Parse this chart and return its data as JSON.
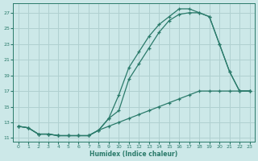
{
  "xlabel": "Humidex (Indice chaleur)",
  "bg_color": "#cce8e8",
  "grid_color": "#b0d0d0",
  "line_color": "#2a7a6a",
  "xlim": [
    -0.5,
    23.5
  ],
  "ylim": [
    10.5,
    28.2
  ],
  "xticks": [
    0,
    1,
    2,
    3,
    4,
    5,
    6,
    7,
    8,
    9,
    10,
    11,
    12,
    13,
    14,
    15,
    16,
    17,
    18,
    19,
    20,
    21,
    22,
    23
  ],
  "yticks": [
    11,
    13,
    15,
    17,
    19,
    21,
    23,
    25,
    27
  ],
  "series1_x": [
    0,
    1,
    2,
    3,
    4,
    5,
    6,
    7,
    8,
    9,
    10,
    11,
    12,
    13,
    14,
    15,
    16,
    17,
    18,
    19,
    20,
    21,
    22,
    23
  ],
  "series1_y": [
    12.5,
    12.3,
    11.5,
    11.5,
    11.3,
    11.3,
    11.3,
    11.3,
    12.0,
    13.5,
    14.5,
    18.5,
    20.5,
    22.5,
    24.5,
    26.0,
    26.8,
    27.0,
    27.0,
    26.5,
    23.0,
    19.5,
    17.0,
    17.0
  ],
  "series2_x": [
    0,
    1,
    2,
    3,
    4,
    5,
    6,
    7,
    8,
    9,
    10,
    11,
    12,
    13,
    14,
    15,
    16,
    17,
    18,
    19,
    20,
    21,
    22,
    23
  ],
  "series2_y": [
    12.5,
    12.3,
    11.5,
    11.5,
    11.3,
    11.3,
    11.3,
    11.3,
    12.0,
    13.5,
    16.5,
    20.0,
    22.0,
    24.0,
    25.5,
    26.5,
    27.5,
    27.5,
    27.0,
    26.5,
    23.0,
    19.5,
    17.0,
    17.0
  ],
  "series3_x": [
    0,
    1,
    2,
    3,
    4,
    5,
    6,
    7,
    8,
    9,
    10,
    11,
    12,
    13,
    14,
    15,
    16,
    17,
    18,
    19,
    20,
    21,
    22,
    23
  ],
  "series3_y": [
    12.5,
    12.3,
    11.5,
    11.5,
    11.3,
    11.3,
    11.3,
    11.3,
    12.0,
    12.5,
    13.0,
    13.5,
    14.0,
    14.5,
    15.0,
    15.5,
    16.0,
    16.5,
    17.0,
    17.0,
    17.0,
    17.0,
    17.0,
    17.0
  ]
}
